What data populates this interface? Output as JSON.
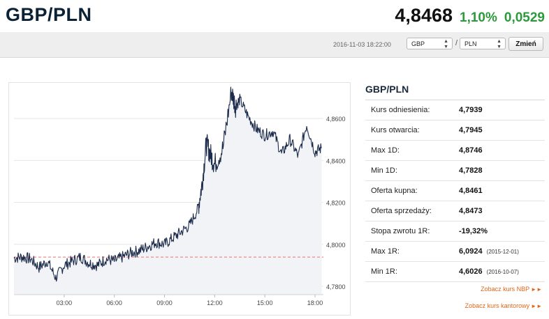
{
  "header": {
    "pair": "GBP/PLN",
    "last": "4,8468",
    "change_pct": "1,10%",
    "change_abs": "0,0529"
  },
  "toolbar": {
    "timestamp": "2016-11-03 18:22:00",
    "base_currency": "GBP",
    "quote_currency": "PLN",
    "separator": "/",
    "change_button": "Zmień"
  },
  "side": {
    "title": "GBP/PLN",
    "rows": [
      {
        "label": "Kurs odniesienia:",
        "value": "4,7939",
        "date": ""
      },
      {
        "label": "Kurs otwarcia:",
        "value": "4,7945",
        "date": ""
      },
      {
        "label": "Max 1D:",
        "value": "4,8746",
        "date": ""
      },
      {
        "label": "Min 1D:",
        "value": "4,7828",
        "date": ""
      },
      {
        "label": "Oferta kupna:",
        "value": "4,8461",
        "date": ""
      },
      {
        "label": "Oferta sprzedaży:",
        "value": "4,8473",
        "date": ""
      },
      {
        "label": "Stopa zwrotu 1R:",
        "value": "-19,32%",
        "date": ""
      },
      {
        "label": "Max 1R:",
        "value": "6,0924",
        "date": "(2015-12-01)"
      },
      {
        "label": "Min 1R:",
        "value": "4,6026",
        "date": "(2016-10-07)"
      }
    ],
    "link_nbp": "Zobacz kurs NBP",
    "link_kantor": "Zobacz kurs kantorowy"
  },
  "chart_data": {
    "type": "line",
    "x_ticks": [
      "03:00",
      "06:00",
      "09:00",
      "12:00",
      "15:00",
      "18:00"
    ],
    "y_ticks": [
      "4,8600",
      "4,8400",
      "4,8200",
      "4,8000",
      "4,7800"
    ],
    "ylim": [
      4.776,
      4.876
    ],
    "reference_value": 4.7939,
    "line_color": "#1c2b4a",
    "fill_color": "#f1f3f6",
    "reference_color": "#f08a8a",
    "grid": true,
    "x_hours": [
      0.0,
      0.5,
      1.0,
      1.5,
      2.0,
      2.5,
      3.0,
      3.5,
      4.0,
      4.5,
      5.0,
      5.5,
      6.0,
      6.5,
      7.0,
      7.5,
      8.0,
      8.5,
      9.0,
      9.5,
      10.0,
      10.5,
      11.0,
      11.25,
      11.5,
      11.75,
      12.0,
      12.5,
      13.0,
      13.25,
      13.5,
      14.0,
      14.5,
      15.0,
      15.5,
      16.0,
      16.5,
      17.0,
      17.5,
      18.0,
      18.4
    ],
    "values": [
      4.7935,
      4.794,
      4.793,
      4.789,
      4.792,
      4.784,
      4.79,
      4.792,
      4.794,
      4.791,
      4.79,
      4.793,
      4.792,
      4.794,
      4.796,
      4.797,
      4.799,
      4.801,
      4.8,
      4.803,
      4.806,
      4.809,
      4.817,
      4.829,
      4.848,
      4.843,
      4.838,
      4.846,
      4.873,
      4.866,
      4.869,
      4.861,
      4.855,
      4.852,
      4.854,
      4.843,
      4.85,
      4.842,
      4.857,
      4.844,
      4.846
    ]
  }
}
